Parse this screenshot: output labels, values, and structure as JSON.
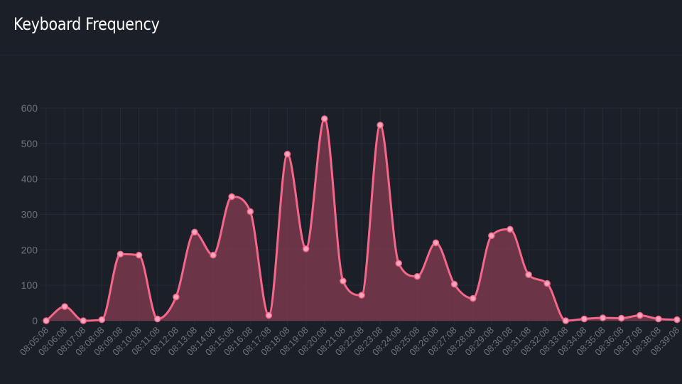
{
  "panel": {
    "title": "Keyboard Frequency"
  },
  "colors": {
    "background": "#1b1f27",
    "line": "#f4668a",
    "fill": "#7a3a4e",
    "point": "#f7a6bb",
    "grid": "#262b35",
    "tick": "#6f747c"
  },
  "chart_data": {
    "type": "area",
    "title": "Keyboard Frequency",
    "xlabel": "",
    "ylabel": "",
    "ylim": [
      0,
      600
    ],
    "yticks": [
      0,
      100,
      200,
      300,
      400,
      500,
      600
    ],
    "grid": true,
    "x": [
      "08:05:08",
      "08:06:08",
      "08:07:08",
      "08:08:08",
      "08:09:08",
      "08:10:08",
      "08:11:08",
      "08:12:08",
      "08:13:08",
      "08:14:08",
      "08:15:08",
      "08:16:08",
      "08:17:08",
      "08:18:08",
      "08:19:08",
      "08:20:08",
      "08:21:08",
      "08:22:08",
      "08:23:08",
      "08:24:08",
      "08:25:08",
      "08:26:08",
      "08:27:08",
      "08:28:08",
      "08:29:08",
      "08:30:08",
      "08:31:08",
      "08:32:08",
      "08:33:08",
      "08:34:08",
      "08:35:08",
      "08:36:08",
      "08:37:08",
      "08:38:08",
      "08:39:08"
    ],
    "series": [
      {
        "values": [
          0,
          40,
          0,
          3,
          188,
          185,
          5,
          67,
          250,
          185,
          350,
          308,
          15,
          470,
          203,
          570,
          112,
          72,
          552,
          162,
          125,
          220,
          103,
          63,
          240,
          258,
          130,
          105,
          0,
          5,
          8,
          7,
          15,
          5,
          3
        ]
      }
    ]
  }
}
